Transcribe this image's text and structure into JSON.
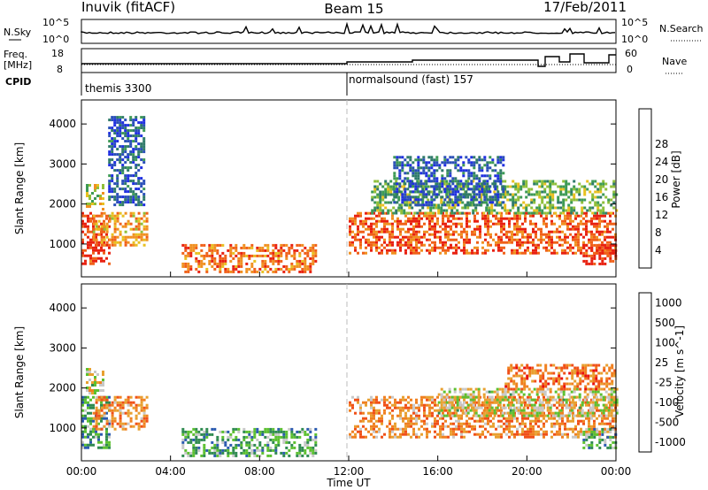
{
  "header": {
    "radar": "Inuvik (fitACF)",
    "beam": "Beam 15",
    "date": "17/Feb/2011"
  },
  "strip": {
    "nsky_label": "N.Sky",
    "nsky_ticks": [
      "10^5",
      "10^0"
    ],
    "nsearch_label": "N.Search",
    "nsearch_ticks": [
      "10^5",
      "10^0"
    ],
    "freq_label": "Freq.",
    "freq_unit": "[MHz]",
    "freq_ticks": [
      "18",
      "8"
    ],
    "nave_ticks": [
      "60",
      "0"
    ],
    "nave_label": "Nave",
    "cpid_label": "CPID",
    "cpid_segments": [
      {
        "start_hour": 0,
        "text": "themis 3300"
      },
      {
        "start_hour": 12,
        "text": "normalsound (fast) 157"
      }
    ]
  },
  "chart_data": [
    {
      "type": "heatmap",
      "name": "power",
      "ylabel": "Slant Range [km]",
      "xlabel": "Time UT",
      "x_range_hours": [
        0,
        24
      ],
      "ylim": [
        180,
        4600
      ],
      "y_ticks": [
        1000,
        2000,
        3000,
        4000
      ],
      "x_tick_labels": [
        "00:00",
        "04:00",
        "08:00",
        "12:00",
        "16:00",
        "20:00",
        "00:00"
      ],
      "colorbar": {
        "label": "Power [dB]",
        "ticks": [
          "4",
          "8",
          "12",
          "16",
          "20",
          "24",
          "28"
        ],
        "colors": [
          "#1f2fe0",
          "#2a4fb8",
          "#2f7a6a",
          "#3d9a55",
          "#8fbf3a",
          "#e8c020",
          "#f09020",
          "#f06018",
          "#e82010"
        ]
      },
      "regions": [
        {
          "t0": 0.0,
          "t1": 1.2,
          "r0": 500,
          "r1": 1800,
          "level": 0.95
        },
        {
          "t0": 0.5,
          "t1": 3.0,
          "r0": 1000,
          "r1": 1800,
          "level": 0.7
        },
        {
          "t0": 0.2,
          "t1": 1.0,
          "r0": 1900,
          "r1": 2500,
          "level": 0.55
        },
        {
          "t0": 1.2,
          "t1": 2.8,
          "r0": 2000,
          "r1": 4200,
          "level": 0.2
        },
        {
          "t0": 4.5,
          "t1": 10.5,
          "r0": 300,
          "r1": 1000,
          "level": 0.8
        },
        {
          "t0": 12.0,
          "t1": 24.0,
          "r0": 800,
          "r1": 1800,
          "level": 0.85
        },
        {
          "t0": 13.0,
          "t1": 24.0,
          "r0": 1800,
          "r1": 2600,
          "level": 0.45
        },
        {
          "t0": 14.0,
          "t1": 19.0,
          "r0": 2000,
          "r1": 3200,
          "level": 0.2
        },
        {
          "t0": 22.5,
          "t1": 24.0,
          "r0": 500,
          "r1": 1000,
          "level": 0.95
        }
      ]
    },
    {
      "type": "heatmap",
      "name": "velocity",
      "ylabel": "Slant Range [km]",
      "xlabel": "Time UT",
      "x_range_hours": [
        0,
        24
      ],
      "ylim": [
        180,
        4600
      ],
      "y_ticks": [
        1000,
        2000,
        3000,
        4000
      ],
      "x_tick_labels": [
        "00:00",
        "04:00",
        "08:00",
        "12:00",
        "16:00",
        "20:00",
        "00:00"
      ],
      "colorbar": {
        "label": "Velocity [m s^-1]",
        "ticks": [
          "1000",
          "500",
          "100",
          "25",
          "-25",
          "-100",
          "-500",
          "-1000"
        ],
        "colors": [
          "#1f2fe0",
          "#2a5ab0",
          "#2f8a50",
          "#5cc030",
          "#c8c8c8",
          "#e8a030",
          "#f08020",
          "#f05018",
          "#e81010"
        ]
      },
      "regions": [
        {
          "t0": 0.0,
          "t1": 1.2,
          "r0": 500,
          "r1": 1800,
          "level": 0.3
        },
        {
          "t0": 0.5,
          "t1": 3.0,
          "r0": 1000,
          "r1": 1800,
          "level": 0.7
        },
        {
          "t0": 0.2,
          "t1": 1.0,
          "r0": 1900,
          "r1": 2500,
          "level": 0.5
        },
        {
          "t0": 4.5,
          "t1": 10.5,
          "r0": 300,
          "r1": 1000,
          "level": 0.35
        },
        {
          "t0": 12.0,
          "t1": 24.0,
          "r0": 800,
          "r1": 1800,
          "level": 0.7
        },
        {
          "t0": 16.0,
          "t1": 24.0,
          "r0": 1300,
          "r1": 2000,
          "level": 0.5
        },
        {
          "t0": 19.0,
          "t1": 24.0,
          "r0": 2000,
          "r1": 2600,
          "level": 0.75
        },
        {
          "t0": 22.5,
          "t1": 24.0,
          "r0": 500,
          "r1": 1000,
          "level": 0.35
        }
      ]
    }
  ]
}
